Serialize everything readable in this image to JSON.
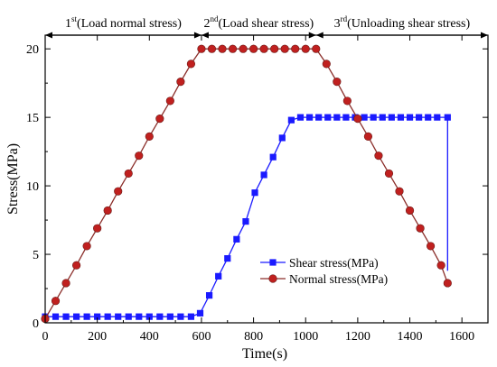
{
  "chart_data": {
    "type": "line",
    "xlabel": "Time(s)",
    "ylabel": "Stress(MPa)",
    "xlim": [
      0,
      1700
    ],
    "ylim": [
      0,
      21
    ],
    "xticks": [
      0,
      200,
      400,
      600,
      800,
      1000,
      1200,
      1400,
      1600
    ],
    "yticks": [
      0,
      5,
      10,
      15,
      20
    ],
    "legend_position": "lower-center",
    "phases": [
      {
        "num": "1",
        "sup": "st",
        "label": "(Load normal stress)",
        "start": 0,
        "end": 600
      },
      {
        "num": "2",
        "sup": "nd",
        "label": "(Load shear stress)",
        "start": 600,
        "end": 1040
      },
      {
        "num": "3",
        "sup": "rd",
        "label": "(Unloading shear stress)",
        "start": 1040,
        "end": 1700
      }
    ],
    "series": [
      {
        "name": "Shear stress(MPa)",
        "color": "#1a1aff",
        "marker": "square",
        "x": [
          0,
          40,
          80,
          120,
          160,
          200,
          240,
          280,
          320,
          360,
          400,
          440,
          480,
          520,
          560,
          595,
          630,
          665,
          700,
          735,
          770,
          805,
          840,
          875,
          910,
          945,
          980,
          1015,
          1050,
          1085,
          1120,
          1155,
          1190,
          1225,
          1260,
          1295,
          1330,
          1365,
          1400,
          1435,
          1470,
          1505,
          1545
        ],
        "y": [
          0.45,
          0.45,
          0.45,
          0.45,
          0.45,
          0.45,
          0.45,
          0.45,
          0.45,
          0.45,
          0.45,
          0.45,
          0.45,
          0.45,
          0.45,
          0.7,
          2.0,
          3.4,
          4.7,
          6.1,
          7.4,
          9.5,
          10.8,
          12.1,
          13.5,
          14.8,
          15.0,
          15.0,
          15.0,
          15.0,
          15.0,
          15.0,
          15.0,
          15.0,
          15.0,
          15.0,
          15.0,
          15.0,
          15.0,
          15.0,
          15.0,
          15.0,
          15.0
        ],
        "tail": {
          "x": 1545,
          "y_from": 15.0,
          "y_to": 3.8
        }
      },
      {
        "name": "Normal stress(MPa)",
        "color": "#c0201f",
        "line_color": "#8b2e2a",
        "marker": "circle",
        "x": [
          0,
          40,
          80,
          120,
          160,
          200,
          240,
          280,
          320,
          360,
          400,
          440,
          480,
          520,
          560,
          600,
          640,
          680,
          720,
          760,
          800,
          840,
          880,
          920,
          960,
          1000,
          1040,
          1080,
          1120,
          1160,
          1200,
          1240,
          1280,
          1320,
          1360,
          1400,
          1440,
          1480,
          1520,
          1545
        ],
        "y": [
          0.3,
          1.6,
          2.9,
          4.2,
          5.6,
          6.9,
          8.2,
          9.6,
          10.9,
          12.2,
          13.6,
          14.9,
          16.2,
          17.6,
          18.9,
          20.0,
          20.0,
          20.0,
          20.0,
          20.0,
          20.0,
          20.0,
          20.0,
          20.0,
          20.0,
          20.0,
          20.0,
          18.9,
          17.6,
          16.2,
          14.9,
          13.6,
          12.2,
          10.9,
          9.6,
          8.2,
          6.9,
          5.6,
          4.2,
          2.9
        ]
      }
    ]
  }
}
